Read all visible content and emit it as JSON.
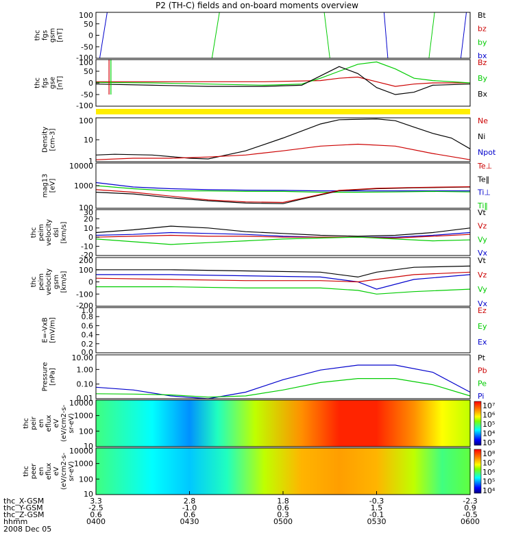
{
  "title": "P2 (TH-C) fields and on-board moments overview",
  "date": "2008 Dec 05",
  "footer_rows": [
    {
      "label": "thc_X-GSM",
      "values": [
        "3.3",
        "2.8",
        "1.8",
        "-0.3",
        "-2.3"
      ]
    },
    {
      "label": "thc_Y-GSM",
      "values": [
        "-2.5",
        "-1.0",
        "0.6",
        "1.5",
        "0.9"
      ]
    },
    {
      "label": "thc_Z-GSM",
      "values": [
        "0.6",
        "0.6",
        "0.3",
        "-0.1",
        "-0.5"
      ]
    },
    {
      "label": "hhmm",
      "values": [
        "0400",
        "0430",
        "0500",
        "0530",
        "0600"
      ]
    }
  ],
  "colors": {
    "black": "#000000",
    "red": "#cc0000",
    "green": "#00cc00",
    "blue": "#0000cc",
    "yellow": "#ffee00"
  },
  "chart_data": [
    {
      "id": "fgs-gsm",
      "type": "line",
      "ylabel": [
        "thc",
        "fgs",
        "gsm",
        "[nT]"
      ],
      "yticks": [
        "100",
        "50",
        "0",
        "-50",
        "-100"
      ],
      "ylim": [
        -100,
        100
      ],
      "legend": [
        {
          "label": "Bt",
          "color": "black"
        },
        {
          "label": "bz",
          "color": "red"
        },
        {
          "label": "by",
          "color": "green"
        },
        {
          "label": "bx",
          "color": "blue"
        }
      ],
      "x_hours": [
        4.0,
        6.0
      ],
      "series": [
        {
          "name": "bx",
          "color": "blue",
          "segments": [
            [
              [
                4.02,
                -100
              ],
              [
                4.06,
                100
              ]
            ],
            [
              [
                5.54,
                100
              ],
              [
                5.56,
                -100
              ]
            ],
            [
              [
                5.95,
                -100
              ],
              [
                5.98,
                100
              ]
            ]
          ]
        },
        {
          "name": "by",
          "color": "green",
          "segments": [
            [
              [
                4.62,
                -100
              ],
              [
                4.66,
                100
              ]
            ],
            [
              [
                5.22,
                100
              ],
              [
                5.25,
                -100
              ]
            ],
            [
              [
                5.78,
                -100
              ],
              [
                5.81,
                100
              ]
            ]
          ]
        }
      ]
    },
    {
      "id": "fgs-gse",
      "type": "line",
      "ylabel": [
        "thc",
        "fgs",
        "gse",
        "[nT]"
      ],
      "yticks": [
        "100",
        "50",
        "0",
        "-50",
        "-100"
      ],
      "ylim": [
        -100,
        100
      ],
      "legend": [
        {
          "label": "Bz",
          "color": "red"
        },
        {
          "label": "By",
          "color": "green"
        },
        {
          "label": "Bx",
          "color": "black"
        }
      ],
      "x_hours": [
        4.0,
        6.0
      ],
      "series": [
        {
          "name": "Bz",
          "color": "red",
          "x": [
            4.0,
            4.3,
            4.6,
            4.9,
            5.2,
            5.3,
            5.4,
            5.5,
            5.6,
            5.7,
            5.8,
            6.0
          ],
          "y": [
            5,
            5,
            5,
            5,
            10,
            20,
            25,
            5,
            -15,
            -5,
            0,
            0
          ]
        },
        {
          "name": "By",
          "color": "green",
          "x": [
            4.0,
            4.3,
            4.6,
            4.9,
            5.1,
            5.2,
            5.3,
            5.4,
            5.5,
            5.6,
            5.7,
            5.8,
            6.0
          ],
          "y": [
            2,
            0,
            -5,
            -10,
            -5,
            20,
            50,
            80,
            90,
            60,
            20,
            10,
            0
          ]
        },
        {
          "name": "Bx",
          "color": "black",
          "x": [
            4.0,
            4.3,
            4.6,
            4.9,
            5.1,
            5.2,
            5.3,
            5.4,
            5.5,
            5.6,
            5.7,
            5.8,
            6.0
          ],
          "y": [
            -5,
            -10,
            -15,
            -15,
            -10,
            30,
            70,
            40,
            -20,
            -50,
            -40,
            -10,
            -5
          ]
        }
      ],
      "spikes": [
        {
          "x": 4.08,
          "color": "green"
        },
        {
          "x": 4.07,
          "color": "red"
        }
      ]
    },
    {
      "id": "density",
      "type": "line",
      "scale": "log",
      "ylabel": [
        "Density",
        "[cm-3]"
      ],
      "yticks": [
        "100",
        "10",
        "1"
      ],
      "ylim": [
        0.3,
        200
      ],
      "legend": [
        {
          "label": "Ne",
          "color": "red"
        },
        {
          "label": "Ni",
          "color": "black"
        },
        {
          "label": "Npot",
          "color": "blue"
        }
      ],
      "x_hours": [
        4.0,
        6.0
      ],
      "series": [
        {
          "name": "Ni",
          "color": "black",
          "x": [
            4.0,
            4.1,
            4.3,
            4.5,
            4.6,
            4.8,
            5.0,
            5.2,
            5.3,
            5.5,
            5.6,
            5.7,
            5.8,
            5.9,
            6.0
          ],
          "y": [
            0.8,
            0.9,
            0.8,
            0.5,
            0.45,
            1.5,
            10,
            80,
            150,
            170,
            130,
            50,
            20,
            10,
            2
          ]
        },
        {
          "name": "Ne",
          "color": "red",
          "x": [
            4.0,
            4.2,
            4.4,
            4.6,
            4.8,
            5.0,
            5.2,
            5.4,
            5.6,
            5.8,
            6.0
          ],
          "y": [
            0.4,
            0.5,
            0.5,
            0.6,
            0.8,
            1.5,
            3,
            4,
            3,
            1,
            0.4
          ]
        }
      ]
    },
    {
      "id": "temperature",
      "type": "line",
      "scale": "log",
      "ylabel": [
        "mag13",
        "[eV]"
      ],
      "yticks": [
        "10000",
        "1000",
        "100"
      ],
      "ylim": [
        30,
        12000
      ],
      "legend": [
        {
          "label": "Te⊥",
          "color": "red"
        },
        {
          "label": "Te‖",
          "color": "black"
        },
        {
          "label": "Ti⊥",
          "color": "blue"
        },
        {
          "label": "Ti‖",
          "color": "green"
        }
      ],
      "x_hours": [
        4.0,
        6.0
      ],
      "series": [
        {
          "name": "Ti⊥",
          "color": "blue",
          "x": [
            4.0,
            4.2,
            4.4,
            4.6,
            4.8,
            5.0,
            5.2,
            5.4,
            5.6,
            5.8,
            6.0
          ],
          "y": [
            900,
            500,
            400,
            350,
            330,
            320,
            300,
            300,
            300,
            300,
            300
          ]
        },
        {
          "name": "Ti‖",
          "color": "green",
          "x": [
            4.0,
            4.2,
            4.4,
            4.6,
            4.8,
            5.0,
            5.2,
            5.4,
            5.6,
            5.8,
            6.0
          ],
          "y": [
            600,
            400,
            300,
            300,
            280,
            280,
            250,
            250,
            260,
            280,
            260
          ]
        },
        {
          "name": "Te‖",
          "color": "black",
          "x": [
            4.0,
            4.2,
            4.4,
            4.6,
            4.8,
            5.0,
            5.1,
            5.3,
            5.5,
            5.7,
            6.0
          ],
          "y": [
            250,
            200,
            120,
            80,
            60,
            55,
            100,
            300,
            400,
            450,
            500
          ]
        },
        {
          "name": "Te⊥",
          "color": "red",
          "x": [
            4.0,
            4.2,
            4.4,
            4.6,
            4.8,
            5.0,
            5.1,
            5.3,
            5.5,
            5.7,
            6.0
          ],
          "y": [
            350,
            250,
            150,
            90,
            70,
            65,
            110,
            320,
            420,
            470,
            520
          ]
        }
      ]
    },
    {
      "id": "peim-velocity-dsl",
      "type": "line",
      "ylabel": [
        "thc",
        "peim",
        "velocity",
        "dsl",
        "[km/s]"
      ],
      "yticks": [
        "30",
        "20",
        "10",
        "0",
        "-10",
        "-20"
      ],
      "ylim": [
        -20,
        30
      ],
      "legend": [
        {
          "label": "Vt",
          "color": "black"
        },
        {
          "label": "Vz",
          "color": "red"
        },
        {
          "label": "Vy",
          "color": "green"
        },
        {
          "label": "Vx",
          "color": "blue"
        }
      ],
      "x_hours": [
        4.0,
        6.0
      ],
      "series": [
        {
          "name": "Vt",
          "color": "black",
          "x": [
            4.0,
            4.2,
            4.4,
            4.6,
            4.8,
            5.0,
            5.2,
            5.4,
            5.6,
            5.8,
            6.0
          ],
          "y": [
            5,
            8,
            12,
            10,
            6,
            4,
            2,
            1,
            2,
            5,
            10
          ]
        },
        {
          "name": "Vx",
          "color": "blue",
          "x": [
            4.0,
            4.2,
            4.4,
            4.6,
            4.8,
            5.0,
            5.2,
            5.4,
            5.6,
            5.8,
            6.0
          ],
          "y": [
            2,
            3,
            5,
            4,
            3,
            1,
            0,
            0,
            0,
            2,
            5
          ]
        },
        {
          "name": "Vz",
          "color": "red",
          "x": [
            4.0,
            4.2,
            4.4,
            4.6,
            4.8,
            5.0,
            5.2,
            5.4,
            5.6,
            5.8,
            6.0
          ],
          "y": [
            0,
            1,
            2,
            1,
            1,
            0,
            0,
            0,
            -1,
            1,
            3
          ]
        },
        {
          "name": "Vy",
          "color": "green",
          "x": [
            4.0,
            4.2,
            4.4,
            4.6,
            4.8,
            5.0,
            5.2,
            5.4,
            5.6,
            5.8,
            6.0
          ],
          "y": [
            -2,
            -5,
            -8,
            -6,
            -4,
            -2,
            -1,
            0,
            -2,
            -4,
            -3
          ]
        }
      ]
    },
    {
      "id": "peim-velocity-gsm",
      "type": "line",
      "ylabel": [
        "thc",
        "peim",
        "velocity",
        "gsm",
        "[km/s]"
      ],
      "yticks": [
        "200",
        "100",
        "0",
        "-100",
        "-200"
      ],
      "ylim": [
        -200,
        200
      ],
      "legend": [
        {
          "label": "Vt",
          "color": "black"
        },
        {
          "label": "Vz",
          "color": "red"
        },
        {
          "label": "Vy",
          "color": "green"
        },
        {
          "label": "Vx",
          "color": "blue"
        }
      ],
      "x_hours": [
        4.0,
        6.0
      ],
      "series": [
        {
          "name": "Vt",
          "color": "black",
          "x": [
            4.0,
            4.4,
            4.8,
            5.2,
            5.4,
            5.5,
            5.7,
            6.0
          ],
          "y": [
            100,
            100,
            90,
            80,
            40,
            80,
            120,
            130
          ]
        },
        {
          "name": "Vx",
          "color": "blue",
          "x": [
            4.0,
            4.4,
            4.8,
            5.2,
            5.4,
            5.5,
            5.7,
            6.0
          ],
          "y": [
            60,
            60,
            50,
            40,
            0,
            -60,
            20,
            60
          ]
        },
        {
          "name": "Vz",
          "color": "red",
          "x": [
            4.0,
            4.4,
            4.8,
            5.2,
            5.4,
            5.5,
            5.7,
            6.0
          ],
          "y": [
            30,
            20,
            10,
            10,
            0,
            20,
            60,
            80
          ]
        },
        {
          "name": "Vy",
          "color": "green",
          "x": [
            4.0,
            4.4,
            4.8,
            5.2,
            5.4,
            5.5,
            5.7,
            6.0
          ],
          "y": [
            -40,
            -40,
            -50,
            -50,
            -70,
            -100,
            -80,
            -60
          ]
        }
      ]
    },
    {
      "id": "efield",
      "type": "line",
      "ylabel": [
        "E=-VxB",
        "[mV/m]"
      ],
      "yticks": [
        "1.0",
        "0.8",
        "0.6",
        "0.4",
        "0.2",
        "0.0"
      ],
      "ylim": [
        0,
        1
      ],
      "legend": [
        {
          "label": "Ez",
          "color": "red"
        },
        {
          "label": "Ey",
          "color": "green"
        },
        {
          "label": "Ex",
          "color": "blue"
        }
      ],
      "x_hours": [
        4.0,
        6.0
      ],
      "series": []
    },
    {
      "id": "pressure",
      "type": "line",
      "scale": "log",
      "ylabel": [
        "Pressure",
        "[nPa]"
      ],
      "yticks": [
        "10.00",
        "1.00",
        "0.10",
        "0.01"
      ],
      "ylim": [
        0.006,
        20
      ],
      "legend": [
        {
          "label": "Pt",
          "color": "black"
        },
        {
          "label": "Pb",
          "color": "red"
        },
        {
          "label": "Pe",
          "color": "green"
        },
        {
          "label": "Pi",
          "color": "blue"
        }
      ],
      "x_hours": [
        4.0,
        6.0
      ],
      "series": [
        {
          "name": "Pi",
          "color": "blue",
          "x": [
            4.0,
            4.2,
            4.4,
            4.6,
            4.8,
            5.0,
            5.2,
            5.4,
            5.6,
            5.8,
            6.0
          ],
          "y": [
            0.05,
            0.03,
            0.01,
            0.006,
            0.02,
            0.2,
            1.2,
            3,
            3,
            0.8,
            0.02
          ]
        },
        {
          "name": "Pe",
          "color": "green",
          "x": [
            4.0,
            4.2,
            4.4,
            4.6,
            4.8,
            5.0,
            5.2,
            5.4,
            5.6,
            5.8,
            6.0
          ],
          "y": [
            0.015,
            0.014,
            0.012,
            0.008,
            0.01,
            0.03,
            0.12,
            0.25,
            0.25,
            0.08,
            0.01
          ]
        }
      ]
    },
    {
      "id": "peir-spectrogram",
      "type": "heatmap",
      "ylabel": [
        "thc",
        "peir",
        "en",
        "eflux",
        "eV",
        "(eV/cm2-s-",
        "sr-eV)"
      ],
      "yticks": [
        "10000",
        "1000",
        "100",
        "10"
      ],
      "colorbar_ticks": [
        "10⁷",
        "10⁶",
        "10⁵",
        "10⁴",
        "10³"
      ],
      "x_hours": [
        4.0,
        6.0
      ],
      "profile": [
        {
          "x": 4.0,
          "level": 0.45
        },
        {
          "x": 4.3,
          "level": 0.35
        },
        {
          "x": 4.5,
          "level": 0.25
        },
        {
          "x": 4.65,
          "level": 0.4
        },
        {
          "x": 4.85,
          "level": 0.6
        },
        {
          "x": 5.1,
          "level": 0.8
        },
        {
          "x": 5.3,
          "level": 0.95
        },
        {
          "x": 5.5,
          "level": 0.95
        },
        {
          "x": 5.7,
          "level": 0.8
        },
        {
          "x": 5.85,
          "level": 0.65
        },
        {
          "x": 6.0,
          "level": 0.6
        }
      ]
    },
    {
      "id": "peer-spectrogram",
      "type": "heatmap",
      "ylabel": [
        "thc",
        "peer",
        "en",
        "eflux",
        "eV",
        "(eV/cm2-s-",
        "sr-eV)"
      ],
      "yticks": [
        "10000",
        "1000",
        "100",
        "10"
      ],
      "colorbar_ticks": [
        "10⁸",
        "10⁷",
        "10⁶",
        "10⁵",
        "10⁴"
      ],
      "x_hours": [
        4.0,
        6.0
      ],
      "profile": [
        {
          "x": 4.0,
          "level": 0.45
        },
        {
          "x": 4.3,
          "level": 0.35
        },
        {
          "x": 4.5,
          "level": 0.3
        },
        {
          "x": 4.7,
          "level": 0.4
        },
        {
          "x": 4.9,
          "level": 0.6
        },
        {
          "x": 5.1,
          "level": 0.75
        },
        {
          "x": 5.3,
          "level": 0.78
        },
        {
          "x": 5.5,
          "level": 0.75
        },
        {
          "x": 5.7,
          "level": 0.6
        },
        {
          "x": 5.85,
          "level": 0.45
        },
        {
          "x": 6.0,
          "level": 0.5
        }
      ]
    }
  ]
}
